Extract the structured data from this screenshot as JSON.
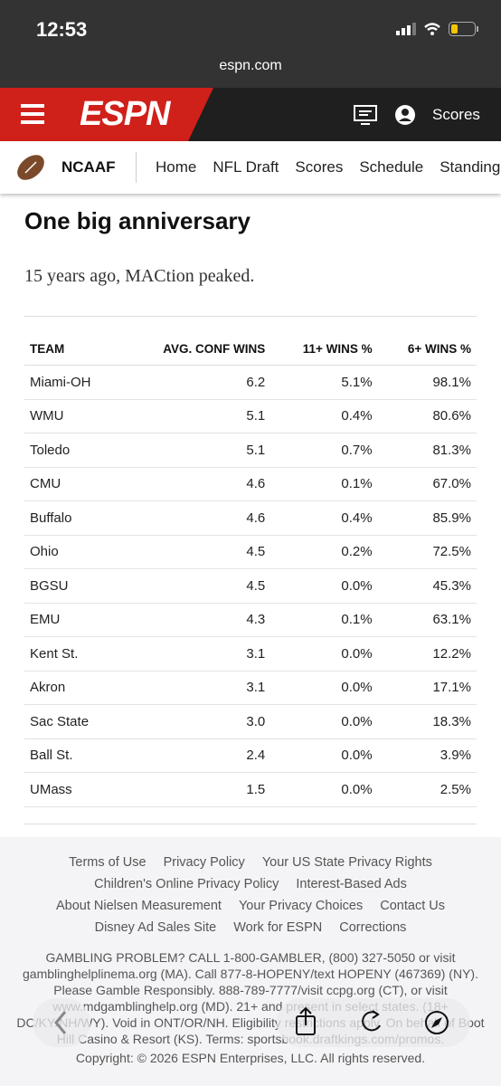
{
  "status_bar": {
    "time": "12:53"
  },
  "url": "espn.com",
  "header": {
    "logo": "ESPN",
    "scores": "Scores"
  },
  "nav": {
    "league": "NCAAF",
    "items": [
      "Home",
      "NFL Draft",
      "Scores",
      "Schedule",
      "Standings"
    ]
  },
  "article": {
    "title": "One big anniversary",
    "subtitle": "15 years ago, MACtion peaked."
  },
  "table": {
    "headers": [
      "TEAM",
      "AVG. CONF WINS",
      "11+ WINS %",
      "6+ WINS %"
    ],
    "rows": [
      [
        "Miami-OH",
        "6.2",
        "5.1%",
        "98.1%"
      ],
      [
        "WMU",
        "5.1",
        "0.4%",
        "80.6%"
      ],
      [
        "Toledo",
        "5.1",
        "0.7%",
        "81.3%"
      ],
      [
        "CMU",
        "4.6",
        "0.1%",
        "67.0%"
      ],
      [
        "Buffalo",
        "4.6",
        "0.4%",
        "85.9%"
      ],
      [
        "Ohio",
        "4.5",
        "0.2%",
        "72.5%"
      ],
      [
        "BGSU",
        "4.5",
        "0.0%",
        "45.3%"
      ],
      [
        "EMU",
        "4.3",
        "0.1%",
        "63.1%"
      ],
      [
        "Kent St.",
        "3.1",
        "0.0%",
        "12.2%"
      ],
      [
        "Akron",
        "3.1",
        "0.0%",
        "17.1%"
      ],
      [
        "Sac State",
        "3.0",
        "0.0%",
        "18.3%"
      ],
      [
        "Ball St.",
        "2.4",
        "0.0%",
        "3.9%"
      ],
      [
        "UMass",
        "1.5",
        "0.0%",
        "2.5%"
      ]
    ]
  },
  "footer": {
    "link_rows": [
      [
        "Terms of Use",
        "Privacy Policy",
        "Your US State Privacy Rights"
      ],
      [
        "Children's Online Privacy Policy",
        "Interest-Based Ads"
      ],
      [
        "About Nielsen Measurement",
        "Your Privacy Choices",
        "Contact Us"
      ],
      [
        "Disney Ad Sales Site",
        "Work for ESPN",
        "Corrections"
      ]
    ],
    "gambling": "GAMBLING PROBLEM? CALL 1-800-GAMBLER, (800) 327-5050 or visit gamblinghelplinema.org (MA). Call 877-8-HOPENY/text HOPENY (467369) (NY). Please Gamble Responsibly. 888-789-7777/visit ccpg.org (CT), or visit www.mdgamblinghelp.org (MD). 21+ and present in select states. (18+ DC/KY/NH/WY). Void in ONT/OR/NH. Eligibility restrictions apply. On behalf of Boot Hill Casino & Resort (KS). Terms: sportsbook.draftkings.com/promos.",
    "copyright": "Copyright: © 2026 ESPN Enterprises, LLC. All rights reserved."
  }
}
